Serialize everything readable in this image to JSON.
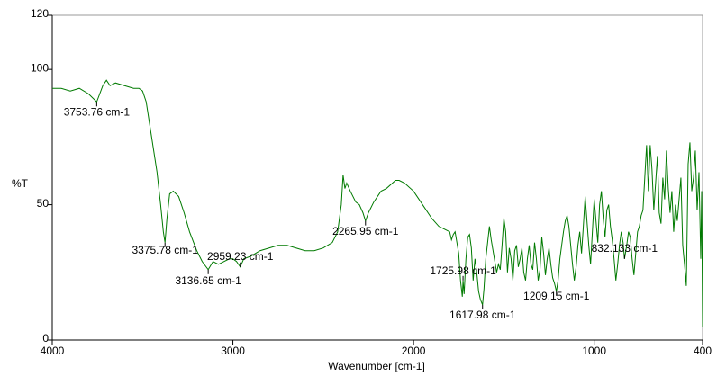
{
  "chart_data": {
    "type": "line",
    "xlabel": "Wavenumber [cm-1]",
    "ylabel": "%T",
    "xlim": [
      4000,
      400
    ],
    "ylim": [
      0,
      120
    ],
    "xticks": [
      4000,
      3000,
      2000,
      1000,
      400
    ],
    "yticks": [
      0,
      50,
      100,
      120
    ],
    "color": "#007a00",
    "x": [
      4000,
      3950,
      3900,
      3850,
      3800,
      3753.76,
      3720,
      3700,
      3680,
      3650,
      3600,
      3550,
      3520,
      3500,
      3480,
      3450,
      3420,
      3400,
      3385,
      3375.78,
      3365,
      3350,
      3330,
      3300,
      3270,
      3240,
      3200,
      3170,
      3136.65,
      3110,
      3080,
      3050,
      3020,
      3000,
      2980,
      2959.23,
      2940,
      2900,
      2850,
      2800,
      2750,
      2700,
      2650,
      2600,
      2550,
      2500,
      2450,
      2420,
      2400,
      2390,
      2380,
      2370,
      2350,
      2320,
      2300,
      2280,
      2265.95,
      2250,
      2220,
      2180,
      2150,
      2100,
      2080,
      2050,
      2000,
      1950,
      1900,
      1860,
      1830,
      1800,
      1790,
      1780,
      1770,
      1750,
      1740,
      1730,
      1725.98,
      1720,
      1710,
      1700,
      1690,
      1680,
      1670,
      1660,
      1650,
      1640,
      1630,
      1617.98,
      1610,
      1600,
      1590,
      1580,
      1570,
      1560,
      1540,
      1530,
      1520,
      1510,
      1500,
      1490,
      1480,
      1470,
      1460,
      1450,
      1440,
      1430,
      1420,
      1410,
      1400,
      1390,
      1380,
      1370,
      1360,
      1350,
      1340,
      1330,
      1320,
      1310,
      1300,
      1290,
      1280,
      1270,
      1260,
      1250,
      1240,
      1230,
      1220,
      1209.15,
      1200,
      1190,
      1180,
      1170,
      1160,
      1150,
      1140,
      1130,
      1120,
      1110,
      1100,
      1090,
      1080,
      1070,
      1060,
      1050,
      1040,
      1030,
      1020,
      1010,
      1000,
      990,
      980,
      970,
      960,
      950,
      940,
      930,
      920,
      910,
      900,
      890,
      880,
      870,
      860,
      850,
      840,
      832.133,
      820,
      810,
      800,
      790,
      780,
      770,
      760,
      750,
      740,
      730,
      720,
      710,
      700,
      690,
      680,
      670,
      660,
      650,
      640,
      630,
      620,
      610,
      600,
      590,
      580,
      570,
      560,
      550,
      540,
      530,
      520,
      510,
      500,
      490,
      480,
      470,
      460,
      450,
      440,
      430,
      420,
      410,
      405,
      400
    ],
    "values": [
      93,
      93,
      92,
      93,
      91,
      88,
      94,
      96,
      94,
      95,
      94,
      93,
      93,
      92,
      88,
      75,
      62,
      50,
      40,
      36,
      45,
      54,
      55,
      53,
      47,
      40,
      33,
      29,
      26,
      29,
      28,
      29,
      30,
      30,
      29,
      27,
      30,
      31,
      33,
      34,
      35,
      35,
      34,
      33,
      33,
      34,
      36,
      40,
      50,
      61,
      56,
      58,
      55,
      51,
      50,
      47,
      44,
      47,
      51,
      55,
      56,
      59,
      59,
      58,
      55,
      50,
      45,
      42,
      41,
      40,
      37,
      39,
      40,
      32,
      22,
      16,
      22,
      17,
      30,
      38,
      39,
      34,
      22,
      30,
      25,
      18,
      15,
      13,
      19,
      30,
      36,
      42,
      37,
      33,
      25,
      28,
      26,
      35,
      45,
      40,
      25,
      34,
      30,
      22,
      33,
      35,
      27,
      30,
      34,
      25,
      22,
      30,
      35,
      28,
      26,
      36,
      30,
      22,
      26,
      38,
      32,
      24,
      30,
      34,
      28,
      23,
      21,
      18,
      22,
      30,
      35,
      40,
      44,
      46,
      42,
      35,
      28,
      22,
      27,
      35,
      40,
      32,
      42,
      53,
      44,
      35,
      28,
      40,
      52,
      44,
      36,
      50,
      55,
      45,
      38,
      48,
      50,
      42,
      37,
      30,
      22,
      28,
      35,
      40,
      36,
      30,
      35,
      40,
      38,
      30,
      24,
      32,
      40,
      42,
      46,
      48,
      60,
      72,
      55,
      72,
      63,
      48,
      58,
      68,
      47,
      43,
      60,
      52,
      70,
      56,
      47,
      55,
      40,
      50,
      44,
      52,
      60,
      35,
      28,
      20,
      65,
      73,
      55,
      60,
      70,
      48,
      62,
      30,
      55,
      5
    ],
    "annotations": [
      {
        "text": "3753.76 cm-1",
        "x": 3753.76,
        "y": 88
      },
      {
        "text": "3375.78 cm-1",
        "x": 3375.78,
        "y": 36
      },
      {
        "text": "2959.23 cm-1",
        "x": 2959.23,
        "y": 27
      },
      {
        "text": "3136.65 cm-1",
        "x": 3136.65,
        "y": 26
      },
      {
        "text": "2265.95 cm-1",
        "x": 2265.95,
        "y": 44
      },
      {
        "text": "1725.98 cm-1",
        "x": 1725.98,
        "y": 22
      },
      {
        "text": "1617.98 cm-1",
        "x": 1617.98,
        "y": 13
      },
      {
        "text": "1209.15 cm-1",
        "x": 1209.15,
        "y": 18
      },
      {
        "text": "832.133 cm-1",
        "x": 832.133,
        "y": 30
      }
    ]
  }
}
